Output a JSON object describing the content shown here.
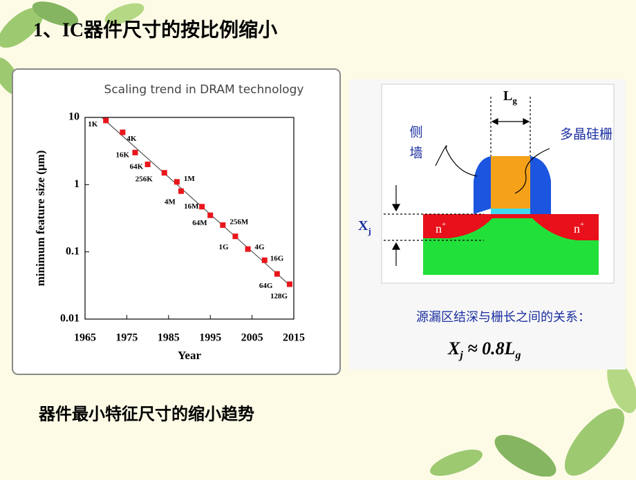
{
  "title": "1、IC器件尺寸的按比例缩小",
  "chart_data": {
    "type": "scatter",
    "title": "Scaling trend in DRAM technology",
    "xlabel": "Year",
    "ylabel": "minimum feature size (μm)",
    "x": [
      1970,
      1974,
      1977,
      1980,
      1984,
      1987,
      1988,
      1993,
      1995,
      1998,
      2001,
      2004,
      2008,
      2011,
      2014
    ],
    "values": [
      9,
      6,
      3,
      2,
      1.5,
      1.1,
      0.8,
      0.47,
      0.35,
      0.25,
      0.17,
      0.11,
      0.075,
      0.047,
      0.033
    ],
    "labels": [
      "1K",
      "4K",
      "16K",
      "64K",
      "256K",
      "1M",
      "4M",
      "16M",
      "64M",
      "256M",
      "1G",
      "4G",
      "16G",
      "64G",
      "128G"
    ],
    "color": "#e8161b",
    "trend": {
      "x": [
        1969,
        2014
      ],
      "values": [
        10,
        0.032
      ]
    },
    "xlim": [
      1965,
      2015
    ],
    "xticks": [
      1965,
      1975,
      1985,
      1995,
      2005,
      2015
    ],
    "ylim": [
      0.01,
      10
    ],
    "yticks": [
      0.01,
      0.1,
      1,
      10
    ],
    "log_y": true
  },
  "diagram": {
    "gate_length": {
      "main": "L",
      "sub": "g"
    },
    "sidewall": [
      "侧",
      "墙"
    ],
    "gate": "多晶硅栅",
    "junction": {
      "main": "X",
      "sub": "j"
    },
    "doping": {
      "main": "n",
      "sup": "+"
    },
    "relation": "源漏区结深与栅长之间的关系：",
    "formula": {
      "x": "X",
      "j": "j",
      "middle": " ≈ 0.8L",
      "g": "g"
    }
  },
  "caption": "器件最小特征尺寸的缩小趋势"
}
